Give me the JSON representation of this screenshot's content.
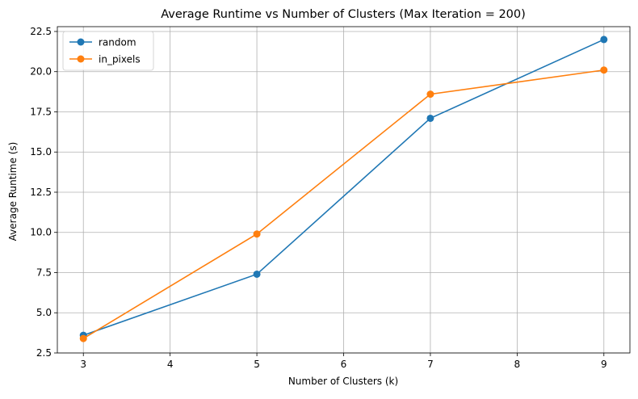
{
  "chart_data": {
    "type": "line",
    "title": "Average Runtime vs Number of Clusters (Max Iteration = 200)",
    "xlabel": "Number of Clusters (k)",
    "ylabel": "Average Runtime (s)",
    "xlim": [
      2.7,
      9.3
    ],
    "ylim": [
      2.5,
      22.8
    ],
    "xticks": [
      3,
      4,
      5,
      6,
      7,
      8,
      9
    ],
    "xtick_labels": [
      "3",
      "4",
      "5",
      "6",
      "7",
      "8",
      "9"
    ],
    "yticks": [
      2.5,
      5.0,
      7.5,
      10.0,
      12.5,
      15.0,
      17.5,
      20.0,
      22.5
    ],
    "ytick_labels": [
      "2.5",
      "5.0",
      "7.5",
      "10.0",
      "12.5",
      "15.0",
      "17.5",
      "20.0",
      "22.5"
    ],
    "grid": true,
    "legend_position": "top-left",
    "x": [
      3,
      5,
      7,
      9
    ],
    "series": [
      {
        "name": "random",
        "color": "#1f77b4",
        "marker": "circle",
        "values": [
          3.6,
          7.4,
          17.1,
          22.0
        ]
      },
      {
        "name": "in_pixels",
        "color": "#ff7f0e",
        "marker": "circle",
        "values": [
          3.4,
          9.9,
          18.6,
          20.1
        ]
      }
    ]
  }
}
